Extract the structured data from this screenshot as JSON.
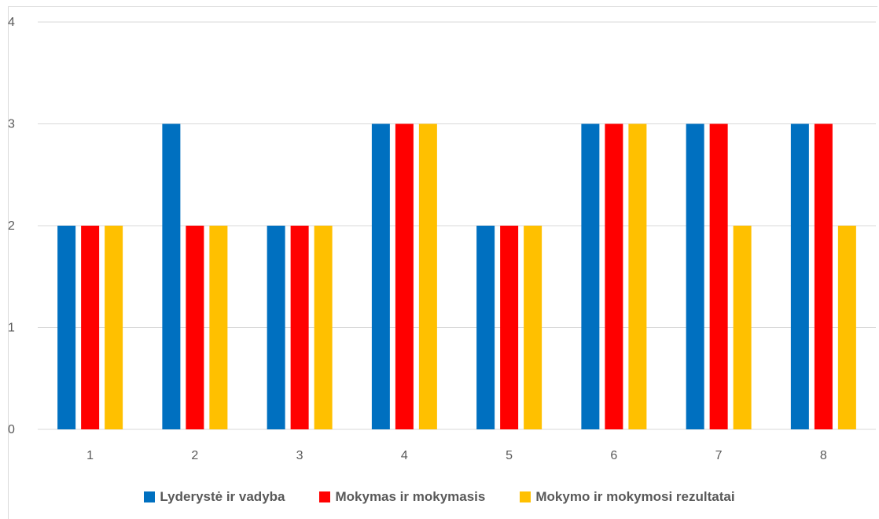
{
  "chart_data": {
    "type": "bar",
    "title": "",
    "xlabel": "",
    "ylabel": "",
    "categories": [
      "1",
      "2",
      "3",
      "4",
      "5",
      "6",
      "7",
      "8"
    ],
    "ylim": [
      0,
      4
    ],
    "yticks": [
      "0",
      "1",
      "2",
      "3",
      "4"
    ],
    "grid": true,
    "legend_position": "bottom",
    "series": [
      {
        "name": "Lyderystė ir vadyba",
        "color": "#0070c0",
        "values": [
          2,
          3,
          2,
          3,
          2,
          3,
          3,
          3
        ]
      },
      {
        "name": "Mokymas ir mokymasis",
        "color": "#ff0000",
        "values": [
          2,
          2,
          2,
          3,
          2,
          3,
          3,
          3
        ]
      },
      {
        "name": "Mokymo ir mokymosi rezultatai",
        "color": "#ffc000",
        "values": [
          2,
          2,
          2,
          3,
          2,
          3,
          2,
          2
        ]
      }
    ]
  }
}
